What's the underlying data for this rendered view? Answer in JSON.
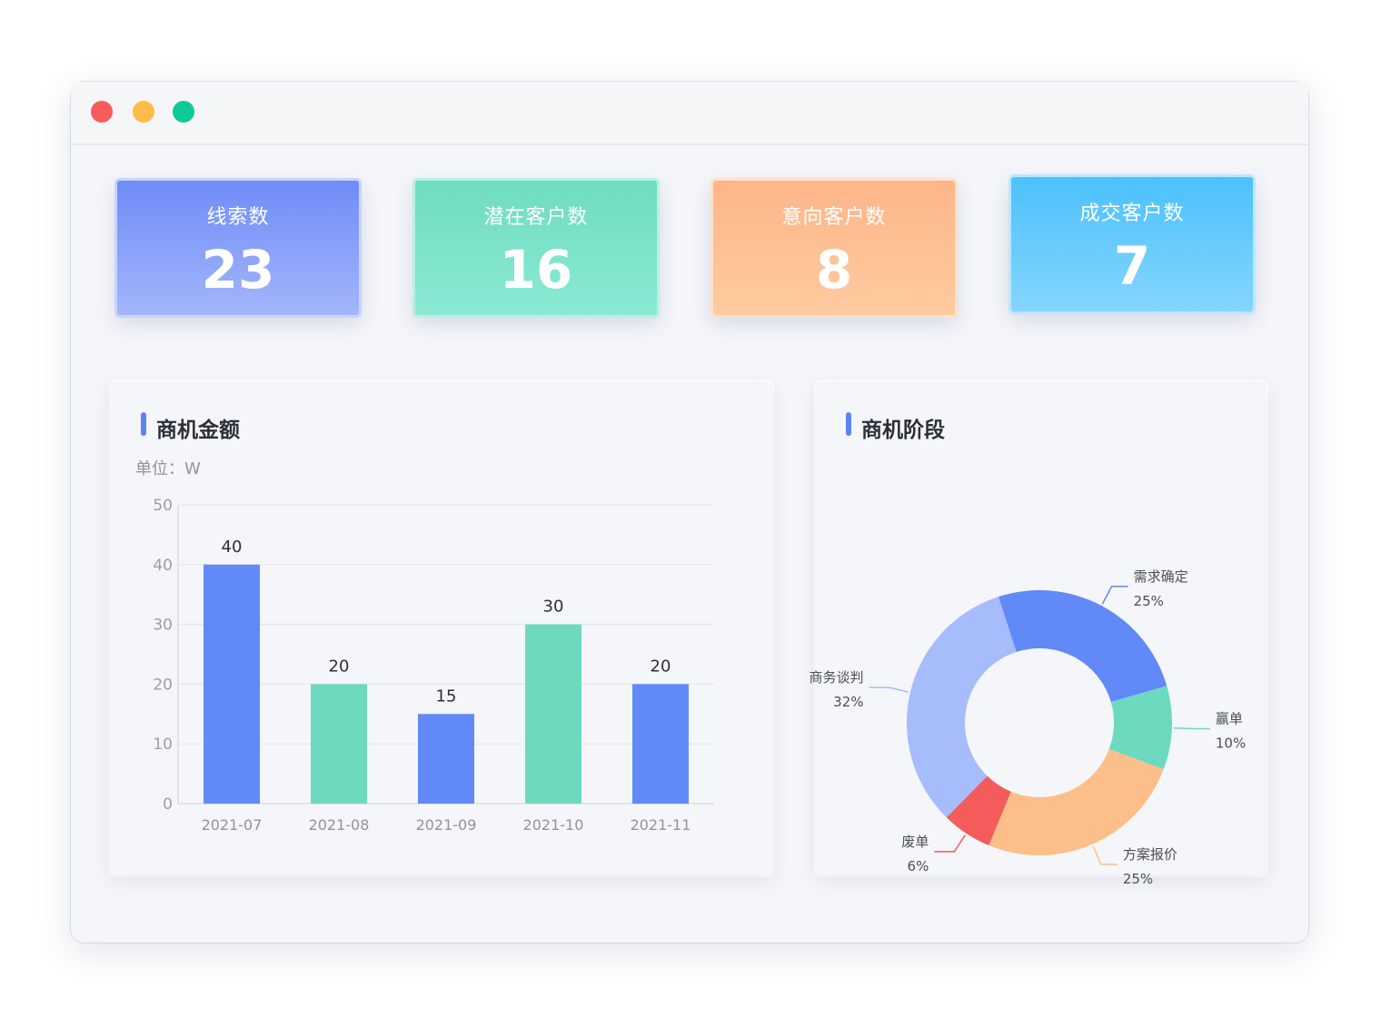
{
  "window": {
    "controls": [
      "close",
      "minimize",
      "maximize"
    ]
  },
  "stats": [
    {
      "label": "线索数",
      "value": "23"
    },
    {
      "label": "潜在客户数",
      "value": "16"
    },
    {
      "label": "意向客户数",
      "value": "8"
    },
    {
      "label": "成交客户数",
      "value": "7"
    }
  ],
  "amount_panel": {
    "title": "商机金额",
    "unit": "单位：W"
  },
  "stage_panel": {
    "title": "商机阶段"
  },
  "colors": {
    "blue": "#6189f8",
    "teal": "#6ddac0",
    "lightblue": "#a6bcfb",
    "red": "#f45b5b",
    "orange": "#fdbf8a"
  },
  "chart_data": [
    {
      "type": "bar",
      "title": "商机金额",
      "ylabel": "单位：W",
      "categories": [
        "2021-07",
        "2021-08",
        "2021-09",
        "2021-10",
        "2021-11"
      ],
      "values": [
        40,
        20,
        15,
        30,
        20
      ],
      "bar_colors": [
        "#6189f8",
        "#6ddac0",
        "#6189f8",
        "#6ddac0",
        "#6189f8"
      ],
      "ylim": [
        0,
        50
      ],
      "yticks": [
        0,
        10,
        20,
        30,
        40,
        50
      ],
      "grid": true,
      "data_labels": true
    },
    {
      "type": "pie",
      "title": "商机阶段",
      "donut": true,
      "slices": [
        {
          "name": "需求确定",
          "value": 25,
          "label": "25%",
          "color": "#6189f8"
        },
        {
          "name": "赢单",
          "value": 10,
          "label": "10%",
          "color": "#6ddac0"
        },
        {
          "name": "方案报价",
          "value": 25,
          "label": "25%",
          "color": "#fdbf8a"
        },
        {
          "name": "废单",
          "value": 6,
          "label": "6%",
          "color": "#f45b5b"
        },
        {
          "name": "商务谈判",
          "value": 32,
          "label": "32%",
          "color": "#a6bcfb"
        }
      ]
    }
  ]
}
